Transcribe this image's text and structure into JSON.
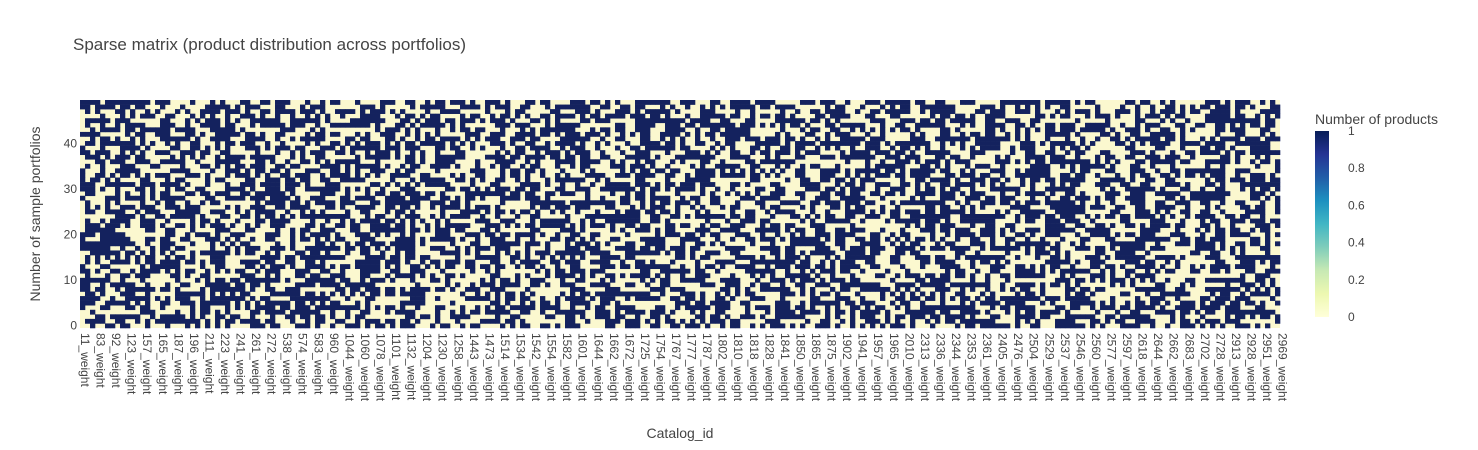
{
  "chart_data": {
    "type": "heatmap",
    "title": "Sparse matrix (product distribution across portfolios)",
    "xlabel": "Catalog_id",
    "ylabel": "Number of sample portfolios",
    "y_ticks": [
      0,
      10,
      20,
      30,
      40
    ],
    "y_range": [
      -0.5,
      49.5
    ],
    "rows": 50,
    "columns": 240,
    "x_tick_labels": [
      "11_weight",
      "83_weight",
      "92_weight",
      "123_weight",
      "157_weight",
      "165_weight",
      "187_weight",
      "196_weight",
      "211_weight",
      "223_weight",
      "241_weight",
      "261_weight",
      "272_weight",
      "538_weight",
      "574_weight",
      "583_weight",
      "960_weight",
      "1044_weight",
      "1060_weight",
      "1078_weight",
      "1101_weight",
      "1132_weight",
      "1204_weight",
      "1230_weight",
      "1258_weight",
      "1443_weight",
      "1473_weight",
      "1514_weight",
      "1534_weight",
      "1542_weight",
      "1554_weight",
      "1582_weight",
      "1601_weight",
      "1644_weight",
      "1662_weight",
      "1672_weight",
      "1725_weight",
      "1754_weight",
      "1767_weight",
      "1777_weight",
      "1787_weight",
      "1802_weight",
      "1810_weight",
      "1818_weight",
      "1828_weight",
      "1841_weight",
      "1850_weight",
      "1865_weight",
      "1875_weight",
      "1902_weight",
      "1941_weight",
      "1957_weight",
      "1965_weight",
      "2010_weight",
      "2313_weight",
      "2336_weight",
      "2344_weight",
      "2353_weight",
      "2361_weight",
      "2405_weight",
      "2476_weight",
      "2504_weight",
      "2529_weight",
      "2537_weight",
      "2546_weight",
      "2560_weight",
      "2577_weight",
      "2597_weight",
      "2618_weight",
      "2644_weight",
      "2662_weight",
      "2683_weight",
      "2702_weight",
      "2728_weight",
      "2913_weight",
      "2928_weight",
      "2951_weight",
      "2969_weight"
    ],
    "colorbar": {
      "title": "Number of products",
      "ticks": [
        0,
        0.2,
        0.4,
        0.6,
        0.8,
        1
      ],
      "tick_labels": [
        "0",
        "0.2",
        "0.4",
        "0.6",
        "0.8",
        "1"
      ],
      "range": [
        0,
        1
      ],
      "colorscale": [
        "#ffffd9",
        "#edf8b1",
        "#c7e9b4",
        "#7fcdbb",
        "#41b6c4",
        "#1d91c0",
        "#225ea8",
        "#253494",
        "#081d58"
      ]
    },
    "values_note_colors": {
      "zero": "#fbf8cf",
      "one": "#14225e"
    },
    "density": 0.52
  }
}
